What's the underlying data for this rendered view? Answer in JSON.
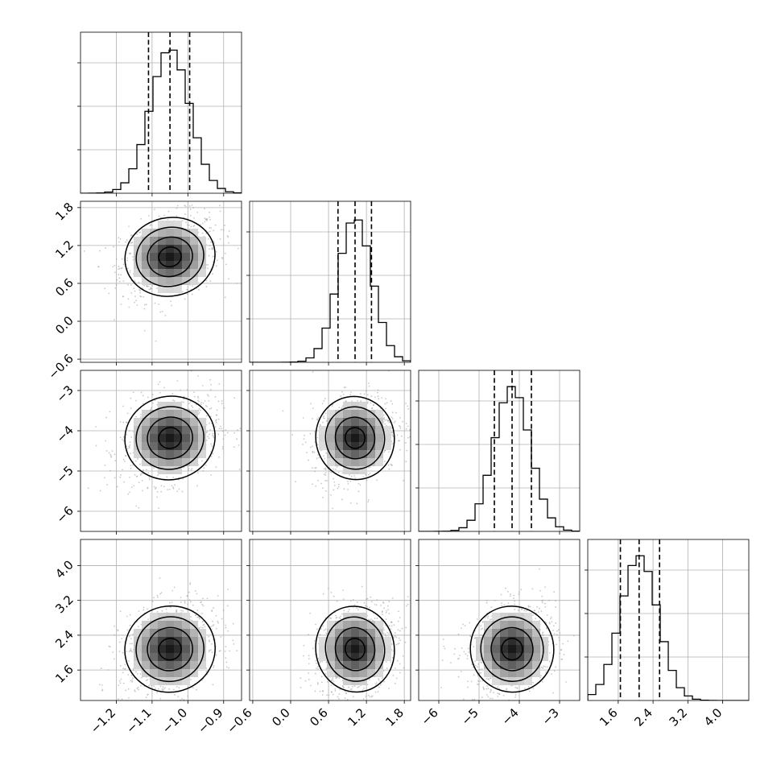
{
  "chart_data": {
    "type": "corner",
    "parameters": [
      {
        "range": [
          -1.3,
          -0.85
        ],
        "ticks": [
          -1.2,
          -1.1,
          -1.0,
          -0.9
        ],
        "tick_labels": [
          "−1.2",
          "−1.1",
          "−1.0",
          "−0.9"
        ],
        "median": -1.05,
        "q16": -1.11,
        "q84": -0.995,
        "sigma": 0.055
      },
      {
        "range": [
          -0.65,
          1.9
        ],
        "ticks": [
          -0.6,
          0.0,
          0.6,
          1.2,
          1.8
        ],
        "tick_labels": [
          "−0.6",
          "0.0",
          "0.6",
          "1.2",
          "1.8"
        ],
        "x_ticks": [
          -0.6,
          0.0,
          0.6,
          1.2,
          1.8
        ],
        "x_tick_labels": [
          "−0.6",
          "0.0",
          "0.6",
          "1.2",
          "1.8"
        ],
        "median": 1.02,
        "q16": 0.75,
        "q84": 1.28,
        "sigma": 0.27
      },
      {
        "range": [
          -6.5,
          -2.5
        ],
        "ticks": [
          -6,
          -5,
          -4,
          -3
        ],
        "tick_labels": [
          "−6",
          "−5",
          "−4",
          "−3"
        ],
        "median": -4.18,
        "q16": -4.62,
        "q84": -3.7,
        "sigma": 0.45
      },
      {
        "range": [
          0.9,
          4.6
        ],
        "ticks": [
          1.6,
          2.4,
          3.2,
          4.0
        ],
        "tick_labels": [
          "1.6",
          "2.4",
          "3.2",
          "4.0"
        ],
        "median": 2.08,
        "q16": 1.65,
        "q84": 2.55,
        "sigma": 0.43
      }
    ],
    "grid": true,
    "quantiles": [
      0.16,
      0.5,
      0.84
    ],
    "levels": [
      "contour 1",
      "contour 2",
      "contour 3"
    ]
  }
}
